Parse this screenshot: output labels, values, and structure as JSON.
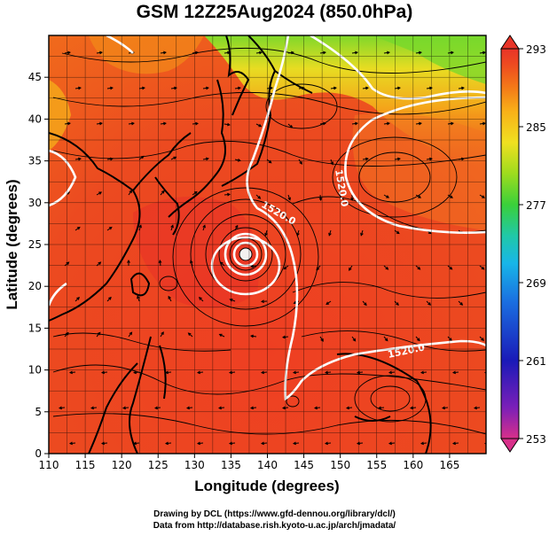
{
  "title": "GSM 12Z25Aug2024 (850.0hPa)",
  "map": {
    "lon_range": [
      110,
      170
    ],
    "lat_range": [
      0,
      50
    ],
    "x_label": "Longitude (degrees)",
    "y_label": "Latitude  (degrees)",
    "x_ticks": [
      110,
      115,
      120,
      125,
      130,
      135,
      140,
      145,
      150,
      155,
      160,
      165
    ],
    "y_ticks": [
      0,
      5,
      10,
      15,
      20,
      25,
      30,
      35,
      40,
      45
    ],
    "grid_step_degrees": 2.5,
    "colorbar": {
      "min": 253,
      "max": 293,
      "tick_labels": [
        293,
        285,
        277,
        269,
        261,
        253
      ],
      "colors": [
        "#d8308a",
        "#7a1fb8",
        "#1a1ab8",
        "#1a6ee0",
        "#18b6e8",
        "#20c8a8",
        "#3ad03a",
        "#9edc1e",
        "#f0e020",
        "#f8b018",
        "#f47a18",
        "#ee4a20",
        "#e83428"
      ]
    },
    "contour_labels": [
      "1520.0",
      "1520.0",
      "1520.0"
    ],
    "typhoon_center": {
      "lon": 136.2,
      "lat": 26.6
    }
  },
  "credits": {
    "line1": "Drawing by DCL (https://www.gfd-dennou.org/library/dcl/)",
    "line2": "Data from http://database.rish.kyoto-u.ac.jp/arch/jmadata/"
  }
}
